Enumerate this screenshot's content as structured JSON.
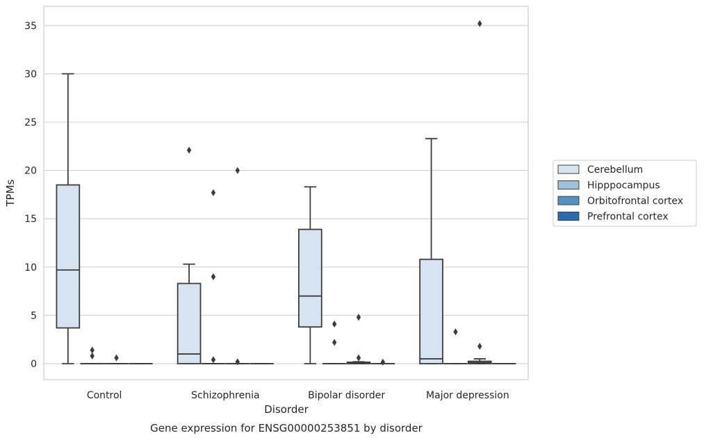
{
  "chart_data": {
    "type": "box",
    "title": "Gene expression for ENSG00000253851 by disorder",
    "xlabel": "Disorder",
    "ylabel": "TPMs",
    "ylim": [
      -1.7,
      37
    ],
    "yticks": [
      0,
      5,
      10,
      15,
      20,
      25,
      30,
      35
    ],
    "categories": [
      "Control",
      "Schizophrenia",
      "Bipolar disorder",
      "Major depression"
    ],
    "grid": "horizontal",
    "legend_position": "right",
    "series": [
      {
        "name": "Cerebellum",
        "color": "#d6e4f1",
        "boxes": [
          {
            "whisker_low": 0,
            "q1": 3.7,
            "median": 9.7,
            "q3": 18.5,
            "whisker_high": 30,
            "outliers": []
          },
          {
            "whisker_low": 0,
            "q1": 0,
            "median": 1.0,
            "q3": 8.3,
            "whisker_high": 10.3,
            "outliers": [
              22.1
            ]
          },
          {
            "whisker_low": 0,
            "q1": 3.8,
            "median": 7.0,
            "q3": 13.9,
            "whisker_high": 18.3,
            "outliers": []
          },
          {
            "whisker_low": 0,
            "q1": 0,
            "median": 0.5,
            "q3": 10.8,
            "whisker_high": 23.3,
            "outliers": []
          }
        ]
      },
      {
        "name": "Hipppocampus",
        "color": "#9cc2de",
        "boxes": [
          {
            "whisker_low": 0,
            "q1": 0,
            "median": 0,
            "q3": 0,
            "whisker_high": 0,
            "outliers": [
              1.4,
              0.8
            ]
          },
          {
            "whisker_low": 0,
            "q1": 0,
            "median": 0,
            "q3": 0,
            "whisker_high": 0,
            "outliers": [
              17.7,
              9.0,
              0.4
            ]
          },
          {
            "whisker_low": 0,
            "q1": 0,
            "median": 0,
            "q3": 0,
            "whisker_high": 0,
            "outliers": [
              4.1,
              2.2
            ]
          },
          {
            "whisker_low": 0,
            "q1": 0,
            "median": 0,
            "q3": 0,
            "whisker_high": 0,
            "outliers": [
              3.3
            ]
          }
        ]
      },
      {
        "name": "Orbitofrontal cortex",
        "color": "#5592c4",
        "boxes": [
          {
            "whisker_low": 0,
            "q1": 0,
            "median": 0,
            "q3": 0,
            "whisker_high": 0,
            "outliers": [
              0.6
            ]
          },
          {
            "whisker_low": 0,
            "q1": 0,
            "median": 0,
            "q3": 0,
            "whisker_high": 0,
            "outliers": [
              20.0,
              0.2
            ]
          },
          {
            "whisker_low": 0,
            "q1": 0,
            "median": 0.05,
            "q3": 0.15,
            "whisker_high": 0.2,
            "outliers": [
              4.8,
              0.6
            ]
          },
          {
            "whisker_low": 0,
            "q1": 0,
            "median": 0.1,
            "q3": 0.25,
            "whisker_high": 0.5,
            "outliers": [
              35.2,
              1.8
            ]
          }
        ]
      },
      {
        "name": "Prefrontal cortex",
        "color": "#2a6aad",
        "boxes": [
          {
            "whisker_low": 0,
            "q1": 0,
            "median": 0,
            "q3": 0,
            "whisker_high": 0,
            "outliers": []
          },
          {
            "whisker_low": 0,
            "q1": 0,
            "median": 0,
            "q3": 0,
            "whisker_high": 0,
            "outliers": []
          },
          {
            "whisker_low": 0,
            "q1": 0,
            "median": 0,
            "q3": 0,
            "whisker_high": 0,
            "outliers": [
              0.15
            ]
          },
          {
            "whisker_low": 0,
            "q1": 0,
            "median": 0,
            "q3": 0,
            "whisker_high": 0,
            "outliers": []
          }
        ]
      }
    ]
  }
}
